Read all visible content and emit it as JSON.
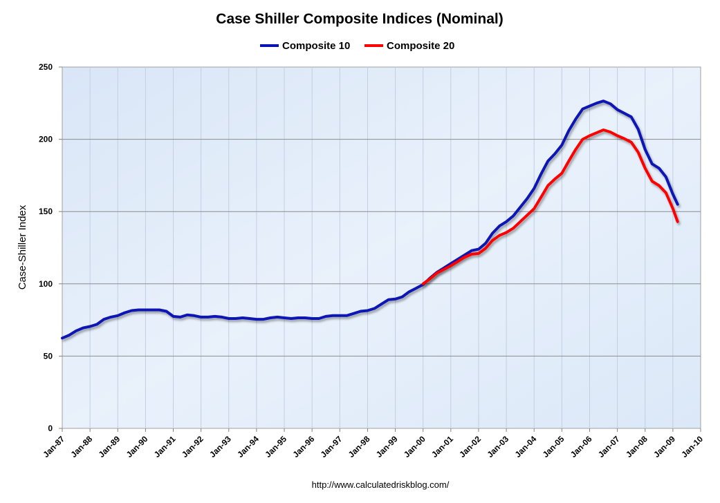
{
  "chart_data": {
    "type": "line",
    "title": "Case Shiller Composite Indices (Nominal)",
    "ylabel": "Case-Shiller Index",
    "xlabel": "",
    "footer": "http://www.calculatedriskblog.com/",
    "ylim": [
      0,
      250
    ],
    "yticks": [
      0,
      50,
      100,
      150,
      200,
      250
    ],
    "xlim": [
      1987,
      2010
    ],
    "xticks": [
      {
        "value": 1987,
        "label": "Jan-87"
      },
      {
        "value": 1988,
        "label": "Jan-88"
      },
      {
        "value": 1989,
        "label": "Jan-89"
      },
      {
        "value": 1990,
        "label": "Jan-90"
      },
      {
        "value": 1991,
        "label": "Jan-91"
      },
      {
        "value": 1992,
        "label": "Jan-92"
      },
      {
        "value": 1993,
        "label": "Jan-93"
      },
      {
        "value": 1994,
        "label": "Jan-94"
      },
      {
        "value": 1995,
        "label": "Jan-95"
      },
      {
        "value": 1996,
        "label": "Jan-96"
      },
      {
        "value": 1997,
        "label": "Jan-97"
      },
      {
        "value": 1998,
        "label": "Jan-98"
      },
      {
        "value": 1999,
        "label": "Jan-99"
      },
      {
        "value": 2000,
        "label": "Jan-00"
      },
      {
        "value": 2001,
        "label": "Jan-01"
      },
      {
        "value": 2002,
        "label": "Jan-02"
      },
      {
        "value": 2003,
        "label": "Jan-03"
      },
      {
        "value": 2004,
        "label": "Jan-04"
      },
      {
        "value": 2005,
        "label": "Jan-05"
      },
      {
        "value": 2006,
        "label": "Jan-06"
      },
      {
        "value": 2007,
        "label": "Jan-07"
      },
      {
        "value": 2008,
        "label": "Jan-08"
      },
      {
        "value": 2009,
        "label": "Jan-09"
      },
      {
        "value": 2010,
        "label": "Jan-10"
      }
    ],
    "grid": true,
    "legend_position": "top-center",
    "series": [
      {
        "name": "Composite 10",
        "color": "#0a14b4",
        "points": [
          [
            1987.0,
            62.5
          ],
          [
            1987.25,
            64.5
          ],
          [
            1987.5,
            67.5
          ],
          [
            1987.75,
            69.5
          ],
          [
            1988.0,
            70.5
          ],
          [
            1988.25,
            72.0
          ],
          [
            1988.5,
            75.5
          ],
          [
            1988.75,
            77.0
          ],
          [
            1989.0,
            78.0
          ],
          [
            1989.25,
            80.0
          ],
          [
            1989.5,
            81.5
          ],
          [
            1989.75,
            82.0
          ],
          [
            1990.0,
            82.0
          ],
          [
            1990.25,
            82.0
          ],
          [
            1990.5,
            82.0
          ],
          [
            1990.75,
            81.0
          ],
          [
            1991.0,
            77.5
          ],
          [
            1991.25,
            77.0
          ],
          [
            1991.5,
            78.5
          ],
          [
            1991.75,
            78.0
          ],
          [
            1992.0,
            77.0
          ],
          [
            1992.25,
            77.0
          ],
          [
            1992.5,
            77.5
          ],
          [
            1992.75,
            77.0
          ],
          [
            1993.0,
            76.0
          ],
          [
            1993.25,
            76.0
          ],
          [
            1993.5,
            76.5
          ],
          [
            1993.75,
            76.0
          ],
          [
            1994.0,
            75.5
          ],
          [
            1994.25,
            75.5
          ],
          [
            1994.5,
            76.5
          ],
          [
            1994.75,
            77.0
          ],
          [
            1995.0,
            76.5
          ],
          [
            1995.25,
            76.0
          ],
          [
            1995.5,
            76.5
          ],
          [
            1995.75,
            76.5
          ],
          [
            1996.0,
            76.0
          ],
          [
            1996.25,
            76.0
          ],
          [
            1996.5,
            77.5
          ],
          [
            1996.75,
            78.0
          ],
          [
            1997.0,
            78.0
          ],
          [
            1997.25,
            78.0
          ],
          [
            1997.5,
            79.5
          ],
          [
            1997.75,
            81.0
          ],
          [
            1998.0,
            81.5
          ],
          [
            1998.25,
            83.0
          ],
          [
            1998.5,
            86.0
          ],
          [
            1998.75,
            89.0
          ],
          [
            1999.0,
            89.5
          ],
          [
            1999.25,
            91.0
          ],
          [
            1999.5,
            94.5
          ],
          [
            1999.75,
            97.0
          ],
          [
            2000.0,
            99.5
          ],
          [
            2000.25,
            104.0
          ],
          [
            2000.5,
            108.0
          ],
          [
            2000.75,
            111.0
          ],
          [
            2001.0,
            114.0
          ],
          [
            2001.25,
            117.0
          ],
          [
            2001.5,
            120.0
          ],
          [
            2001.75,
            123.0
          ],
          [
            2002.0,
            124.0
          ],
          [
            2002.25,
            128.0
          ],
          [
            2002.5,
            135.0
          ],
          [
            2002.75,
            140.0
          ],
          [
            2003.0,
            143.0
          ],
          [
            2003.25,
            147.0
          ],
          [
            2003.5,
            153.0
          ],
          [
            2003.75,
            159.0
          ],
          [
            2004.0,
            166.0
          ],
          [
            2004.25,
            176.0
          ],
          [
            2004.5,
            185.0
          ],
          [
            2004.75,
            190.0
          ],
          [
            2005.0,
            196.0
          ],
          [
            2005.25,
            206.0
          ],
          [
            2005.5,
            214.0
          ],
          [
            2005.75,
            221.0
          ],
          [
            2006.0,
            223.0
          ],
          [
            2006.25,
            225.0
          ],
          [
            2006.5,
            226.5
          ],
          [
            2006.75,
            224.5
          ],
          [
            2007.0,
            220.5
          ],
          [
            2007.25,
            218.0
          ],
          [
            2007.5,
            215.5
          ],
          [
            2007.75,
            207.0
          ],
          [
            2008.0,
            193.0
          ],
          [
            2008.25,
            183.0
          ],
          [
            2008.5,
            180.0
          ],
          [
            2008.75,
            174.0
          ],
          [
            2009.0,
            162.0
          ],
          [
            2009.17,
            155.0
          ]
        ]
      },
      {
        "name": "Composite 20",
        "color": "#ff0000",
        "points": [
          [
            2000.0,
            100.0
          ],
          [
            2000.25,
            103.5
          ],
          [
            2000.5,
            107.5
          ],
          [
            2000.75,
            110.0
          ],
          [
            2001.0,
            112.5
          ],
          [
            2001.25,
            115.5
          ],
          [
            2001.5,
            118.5
          ],
          [
            2001.75,
            120.5
          ],
          [
            2002.0,
            121.0
          ],
          [
            2002.25,
            124.5
          ],
          [
            2002.5,
            130.0
          ],
          [
            2002.75,
            133.5
          ],
          [
            2003.0,
            135.5
          ],
          [
            2003.25,
            138.5
          ],
          [
            2003.5,
            143.0
          ],
          [
            2003.75,
            147.5
          ],
          [
            2004.0,
            152.0
          ],
          [
            2004.25,
            160.0
          ],
          [
            2004.5,
            168.0
          ],
          [
            2004.75,
            172.5
          ],
          [
            2005.0,
            176.5
          ],
          [
            2005.25,
            185.0
          ],
          [
            2005.5,
            193.0
          ],
          [
            2005.75,
            200.0
          ],
          [
            2006.0,
            202.5
          ],
          [
            2006.25,
            204.5
          ],
          [
            2006.5,
            206.5
          ],
          [
            2006.75,
            205.0
          ],
          [
            2007.0,
            202.5
          ],
          [
            2007.25,
            200.5
          ],
          [
            2007.5,
            198.0
          ],
          [
            2007.75,
            191.0
          ],
          [
            2008.0,
            180.0
          ],
          [
            2008.25,
            171.0
          ],
          [
            2008.5,
            168.0
          ],
          [
            2008.75,
            163.0
          ],
          [
            2009.0,
            152.0
          ],
          [
            2009.17,
            143.0
          ]
        ]
      }
    ]
  }
}
